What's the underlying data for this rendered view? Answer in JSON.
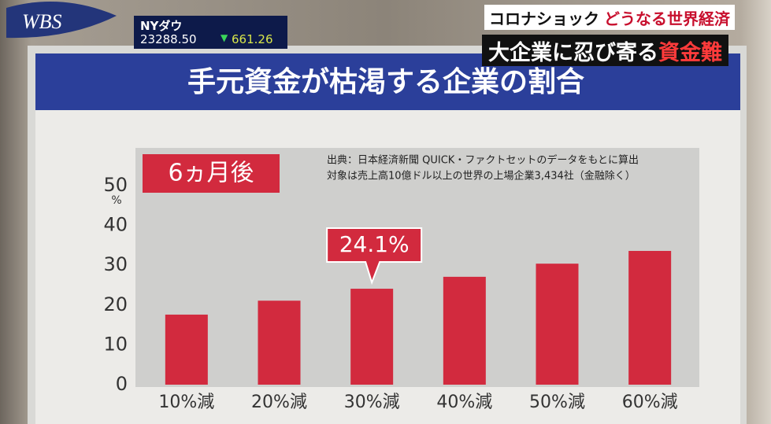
{
  "logo": "WBS",
  "ticker": {
    "label": "NYダウ",
    "value": "23288.50",
    "change": "661.26"
  },
  "caption": {
    "line1a": "コロナショック",
    "line1b": "どうなる世界経済",
    "line2a": "大企業に忍び寄る",
    "line2b": "資金難"
  },
  "chart_data": {
    "type": "bar",
    "title": "手元資金が枯渇する企業の割合",
    "subtitle": "6ヵ月後",
    "notes": [
      "出典：日本経済新聞 QUICK・ファクトセットのデータをもとに算出",
      "対象は売上高10億ドル以上の世界の上場企業3,434社（金融除く）"
    ],
    "y_unit": "%",
    "categories": [
      "10%減",
      "20%減",
      "30%減",
      "40%減",
      "50%減",
      "60%減"
    ],
    "values": [
      17.6,
      21.1,
      24.1,
      27.1,
      30.4,
      33.6
    ],
    "value_labels": [
      null,
      null,
      "24.1%",
      null,
      null,
      null
    ],
    "color": "#d22a3e",
    "ylim": [
      0,
      50
    ],
    "yticks": [
      0,
      10,
      20,
      30,
      40,
      50
    ]
  }
}
